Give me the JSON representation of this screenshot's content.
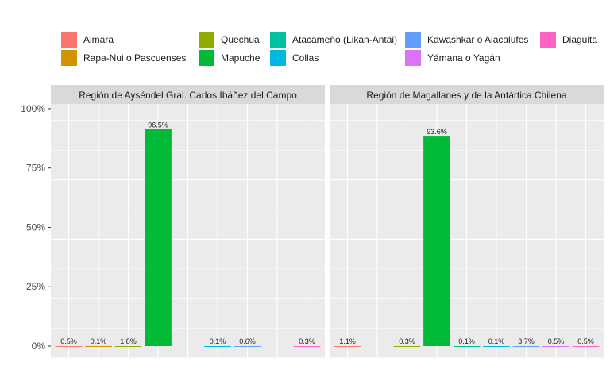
{
  "chart_data": {
    "type": "bar",
    "legend_position": "top",
    "grid": true,
    "ylim": [
      0,
      1.07
    ],
    "y_ticks": [
      {
        "value": 0,
        "label": "0%"
      },
      {
        "value": 0.25,
        "label": "25%"
      },
      {
        "value": 0.5,
        "label": "50%"
      },
      {
        "value": 0.75,
        "label": "75%"
      },
      {
        "value": 1.0,
        "label": "100%"
      }
    ],
    "categories": [
      {
        "name": "Aimara",
        "color": "#F8766D"
      },
      {
        "name": "Rapa-Nui o Pascuenses",
        "color": "#D39200"
      },
      {
        "name": "Quechua",
        "color": "#93AA00"
      },
      {
        "name": "Mapuche",
        "color": "#00BA38"
      },
      {
        "name": "Atacameño (Likan-Antai)",
        "color": "#00C19F"
      },
      {
        "name": "Collas",
        "color": "#00B9E3"
      },
      {
        "name": "Kawashkar o Alacalufes",
        "color": "#619CFF"
      },
      {
        "name": "Yámana o Yagán",
        "color": "#DB72FB"
      },
      {
        "name": "Diaguita",
        "color": "#FF61C3"
      }
    ],
    "panels": [
      {
        "title": "Región de Ayséndel Gral. Carlos Ibáñez del Campo",
        "values": [
          0.005,
          0.001,
          0.018,
          0.965,
          null,
          0.001,
          0.006,
          null,
          0.003
        ],
        "labels": [
          "0.5%",
          "0.1%",
          "1.8%",
          "96.5%",
          null,
          "0.1%",
          "0.6%",
          null,
          "0.3%"
        ]
      },
      {
        "title": "Región de Magallanes y de la Antártica Chilena",
        "values": [
          0.011,
          null,
          0.003,
          0.936,
          0.001,
          0.001,
          0.037,
          0.005,
          0.005
        ],
        "labels": [
          "1.1%",
          null,
          "0.3%",
          "93.6%",
          "0.1%",
          "0.1%",
          "3.7%",
          "0.5%",
          "0.5%"
        ]
      }
    ]
  }
}
